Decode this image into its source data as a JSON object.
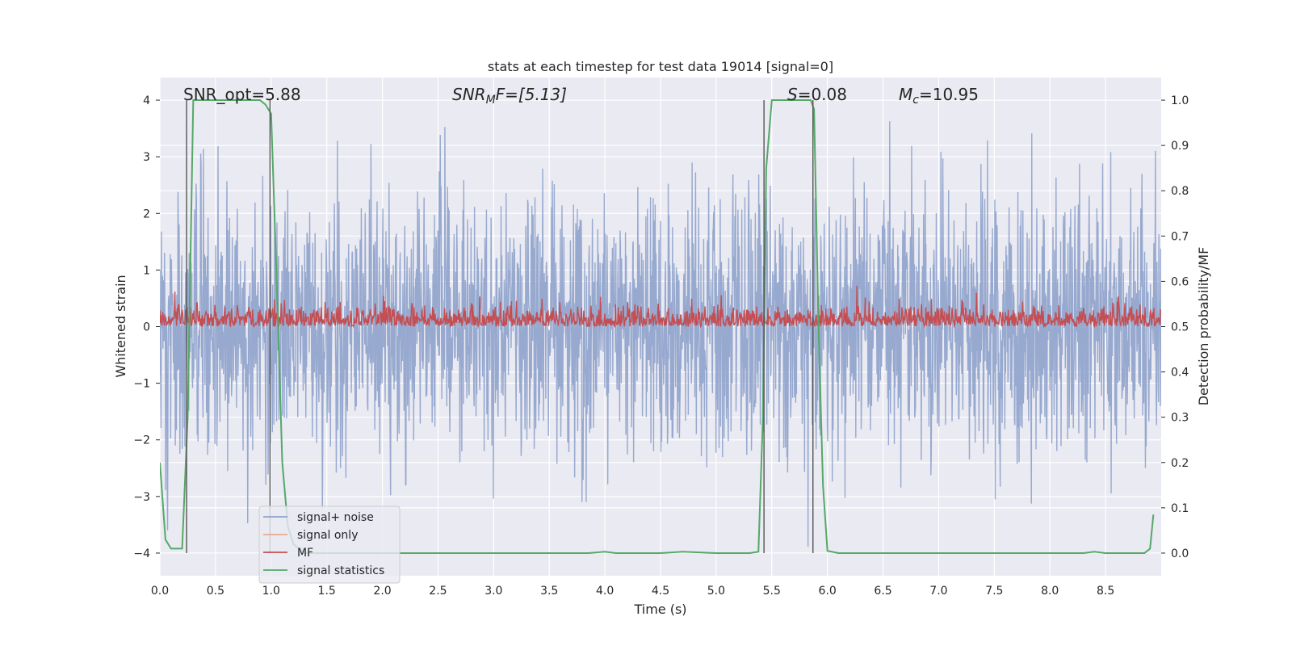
{
  "chart_data": {
    "type": "line",
    "title": "stats at each timestep for test data 19014 [signal=0]",
    "xlabel": "Time (s)",
    "ylabel_left": "Whitened strain",
    "ylabel_right": "Detection probability/MF",
    "xlim": [
      0.0,
      9.0
    ],
    "ylim_left": [
      -4.4,
      4.4
    ],
    "ylim_right": [
      -0.05,
      1.05
    ],
    "x_ticks": [
      0.0,
      0.5,
      1.0,
      1.5,
      2.0,
      2.5,
      3.0,
      3.5,
      4.0,
      4.5,
      5.0,
      5.5,
      6.0,
      6.5,
      7.0,
      7.5,
      8.0,
      8.5
    ],
    "x_tick_labels": [
      "0.0",
      "0.5",
      "1.0",
      "1.5",
      "2.0",
      "2.5",
      "3.0",
      "3.5",
      "4.0",
      "4.5",
      "5.0",
      "5.5",
      "6.0",
      "6.5",
      "7.0",
      "7.5",
      "8.0",
      "8.5"
    ],
    "y_left_ticks": [
      -4,
      -3,
      -2,
      -1,
      0,
      1,
      2,
      3,
      4
    ],
    "y_left_tick_labels": [
      "−4",
      "−3",
      "−2",
      "−1",
      "0",
      "1",
      "2",
      "3",
      "4"
    ],
    "y_right_ticks": [
      0.0,
      0.1,
      0.2,
      0.3,
      0.4,
      0.5,
      0.6,
      0.7,
      0.8,
      0.9,
      1.0
    ],
    "y_right_tick_labels": [
      "0.0",
      "0.1",
      "0.2",
      "0.3",
      "0.4",
      "0.5",
      "0.6",
      "0.7",
      "0.8",
      "0.9",
      "1.0"
    ],
    "grid": true,
    "legend_placement": "lower-left",
    "annotations": {
      "snr_opt": "SNR_opt=5.88",
      "snr_mf_base": "SNR",
      "snr_mf_sub": "M",
      "snr_mf_tail": "F=[5.13]",
      "s_italic": "S",
      "s_tail": "=0.08",
      "mc_base": "M",
      "mc_sub": "c",
      "mc_tail": "=10.95"
    },
    "series": [
      {
        "name": "signal+ noise",
        "color": "#8ea2cb",
        "axis": "left",
        "description": "dense whitened strain noise, spanning roughly -2.6 to 2.6 with spikes to about ±4",
        "amplitude_envelope": [
          -4.0,
          4.0
        ]
      },
      {
        "name": "signal only",
        "color": "#e8a98c",
        "axis": "left",
        "values": []
      },
      {
        "name": "MF",
        "color": "#c44e52",
        "axis": "right",
        "range": [
          0.5,
          0.62
        ]
      },
      {
        "name": "signal statistics",
        "color": "#55a868",
        "axis": "right",
        "x": [
          0.0,
          0.05,
          0.1,
          0.15,
          0.2,
          0.25,
          0.3,
          0.35,
          0.5,
          0.7,
          0.9,
          0.95,
          1.0,
          1.05,
          1.1,
          1.15,
          1.2,
          1.3,
          1.5,
          2.0,
          2.5,
          3.0,
          3.5,
          3.85,
          4.0,
          4.1,
          4.5,
          4.7,
          5.0,
          5.3,
          5.38,
          5.42,
          5.45,
          5.5,
          5.6,
          5.85,
          5.88,
          5.92,
          5.96,
          6.0,
          6.1,
          6.5,
          7.0,
          7.5,
          8.0,
          8.3,
          8.4,
          8.5,
          8.85,
          8.9,
          8.93
        ],
        "y": [
          0.2,
          0.03,
          0.01,
          0.01,
          0.01,
          0.3,
          1.0,
          1.0,
          1.0,
          1.0,
          1.0,
          0.99,
          0.97,
          0.6,
          0.2,
          0.06,
          0.02,
          0.0,
          0.0,
          0.0,
          0.0,
          0.0,
          0.0,
          0.0,
          0.003,
          0.0,
          0.0,
          0.003,
          0.0,
          0.0,
          0.003,
          0.3,
          0.85,
          1.0,
          1.0,
          1.0,
          0.98,
          0.5,
          0.15,
          0.005,
          0.0,
          0.0,
          0.0,
          0.0,
          0.0,
          0.0,
          0.003,
          0.0,
          0.0,
          0.01,
          0.085
        ]
      }
    ],
    "vertical_markers": [
      0.24,
      0.99,
      5.43,
      5.87
    ]
  }
}
